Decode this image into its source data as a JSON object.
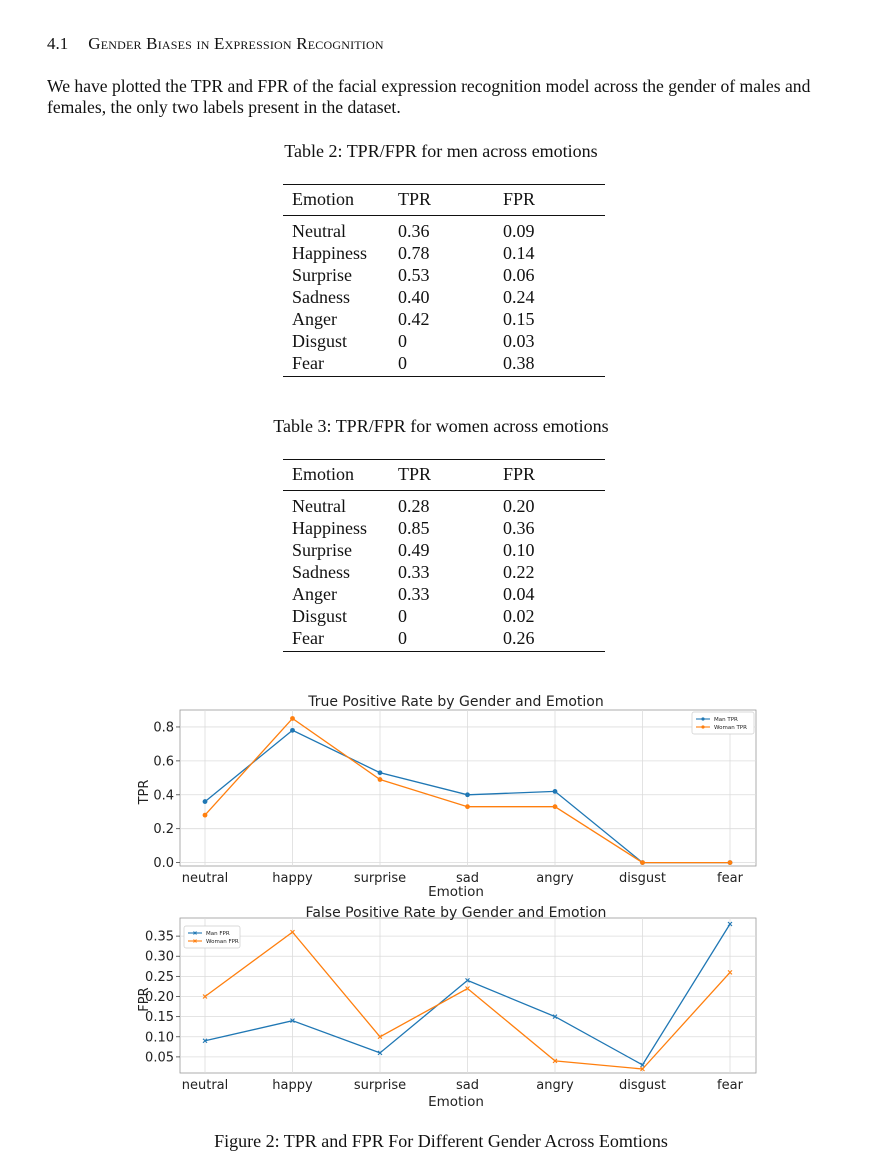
{
  "section": {
    "number": "4.1",
    "title": "Gender Biases in Expression Recognition"
  },
  "paragraph": "We have plotted the TPR and FPR of the facial expression recognition model across the gender of males and females, the only two labels present in the dataset.",
  "table_men": {
    "caption": "Table 2: TPR/FPR for men across emotions",
    "headers": [
      "Emotion",
      "TPR",
      "FPR"
    ],
    "rows": [
      [
        "Neutral",
        "0.36",
        "0.09"
      ],
      [
        "Happiness",
        "0.78",
        "0.14"
      ],
      [
        "Surprise",
        "0.53",
        "0.06"
      ],
      [
        "Sadness",
        "0.40",
        "0.24"
      ],
      [
        "Anger",
        "0.42",
        "0.15"
      ],
      [
        "Disgust",
        "0",
        "0.03"
      ],
      [
        "Fear",
        "0",
        "0.38"
      ]
    ]
  },
  "table_women": {
    "caption": "Table 3: TPR/FPR for women across emotions",
    "headers": [
      "Emotion",
      "TPR",
      "FPR"
    ],
    "rows": [
      [
        "Neutral",
        "0.28",
        "0.20"
      ],
      [
        "Happiness",
        "0.85",
        "0.36"
      ],
      [
        "Surprise",
        "0.49",
        "0.10"
      ],
      [
        "Sadness",
        "0.33",
        "0.22"
      ],
      [
        "Anger",
        "0.33",
        "0.04"
      ],
      [
        "Disgust",
        "0",
        "0.02"
      ],
      [
        "Fear",
        "0",
        "0.26"
      ]
    ]
  },
  "chart_data": [
    {
      "type": "line",
      "title": "True Positive Rate by Gender and Emotion",
      "xlabel": "Emotion",
      "ylabel": "TPR",
      "categories": [
        "neutral",
        "happy",
        "surprise",
        "sad",
        "angry",
        "disgust",
        "fear"
      ],
      "series": [
        {
          "name": "Man TPR",
          "values": [
            0.36,
            0.78,
            0.53,
            0.4,
            0.42,
            0,
            0
          ],
          "color": "#1f77b4",
          "marker": "dot"
        },
        {
          "name": "Woman TPR",
          "values": [
            0.28,
            0.85,
            0.49,
            0.33,
            0.33,
            0,
            0
          ],
          "color": "#ff7f0e",
          "marker": "dot"
        }
      ],
      "yticks": [
        "0.0",
        "0.2",
        "0.4",
        "0.6",
        "0.8"
      ],
      "ylim": [
        -0.02,
        0.9
      ],
      "grid": true,
      "legend": "top-right"
    },
    {
      "type": "line",
      "title": "False Positive Rate by Gender and Emotion",
      "xlabel": "Emotion",
      "ylabel": "FPR",
      "categories": [
        "neutral",
        "happy",
        "surprise",
        "sad",
        "angry",
        "disgust",
        "fear"
      ],
      "series": [
        {
          "name": "Man FPR",
          "values": [
            0.09,
            0.14,
            0.06,
            0.24,
            0.15,
            0.03,
            0.38
          ],
          "color": "#1f77b4",
          "marker": "x"
        },
        {
          "name": "Woman FPR",
          "values": [
            0.2,
            0.36,
            0.1,
            0.22,
            0.04,
            0.02,
            0.26
          ],
          "color": "#ff7f0e",
          "marker": "x"
        }
      ],
      "yticks": [
        "0.05",
        "0.10",
        "0.15",
        "0.20",
        "0.25",
        "0.30",
        "0.35"
      ],
      "ylim": [
        0.01,
        0.395
      ],
      "grid": true,
      "legend": "top-left"
    }
  ],
  "figure_caption": "Figure 2: TPR and FPR For Different Gender Across Eomtions"
}
